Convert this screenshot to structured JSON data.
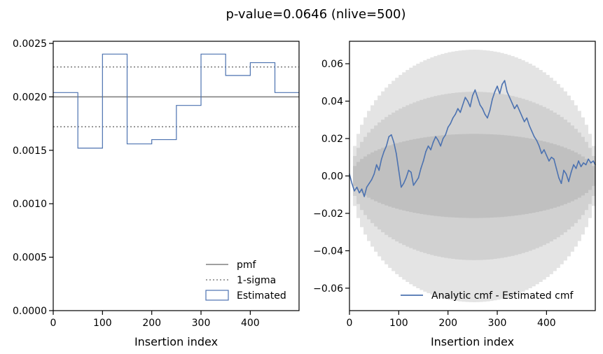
{
  "suptitle": "p-value=0.0646 (nlive=500)",
  "chart_data": [
    {
      "type": "step",
      "xlabel": "Insertion index",
      "ylabel": "",
      "xlim": [
        0,
        499
      ],
      "ylim": [
        0,
        0.00252
      ],
      "xticks": [
        0,
        100,
        200,
        300,
        400
      ],
      "xtick_labels": [
        "0",
        "100",
        "200",
        "300",
        "400"
      ],
      "yticks": [
        0,
        0.0005,
        0.001,
        0.0015,
        0.002,
        0.0025
      ],
      "ytick_labels": [
        "0.0000",
        "0.0005",
        "0.0010",
        "0.0015",
        "0.0020",
        "0.0025"
      ],
      "bin_edges": [
        0,
        50,
        100,
        150,
        200,
        250,
        300,
        350,
        400,
        450,
        499
      ],
      "values": [
        0.00204,
        0.00152,
        0.0024,
        0.00156,
        0.0016,
        0.00192,
        0.0024,
        0.0022,
        0.00232,
        0.00204
      ],
      "pmf": 0.002,
      "sigma_lines": [
        0.00172,
        0.00228
      ],
      "legend": {
        "placement": "lower-right",
        "entries": [
          "pmf",
          "1-sigma",
          "Estimated"
        ]
      },
      "colors": {
        "pmf": "#808080",
        "sigma": "#808080",
        "estimated": "#4c72b0"
      }
    },
    {
      "type": "line",
      "xlabel": "Insertion index",
      "ylabel": "",
      "xlim": [
        0,
        499
      ],
      "ylim": [
        -0.072,
        0.072
      ],
      "xticks": [
        0,
        100,
        200,
        300,
        400
      ],
      "xtick_labels": [
        "0",
        "100",
        "200",
        "300",
        "400"
      ],
      "yticks": [
        -0.06,
        -0.04,
        -0.02,
        0.0,
        0.02,
        0.04,
        0.06
      ],
      "ytick_labels": [
        "−0.06",
        "−0.04",
        "−0.02",
        "0.00",
        "0.02",
        "0.04",
        "0.06"
      ],
      "bands": [
        {
          "sigma": 3,
          "scale": 0.0675
        },
        {
          "sigma": 2,
          "scale": 0.045
        },
        {
          "sigma": 1,
          "scale": 0.0225
        }
      ],
      "series": [
        {
          "name": "Analytic cmf - Estimated cmf",
          "x": [
            0,
            5,
            10,
            15,
            20,
            25,
            30,
            35,
            40,
            45,
            50,
            55,
            60,
            65,
            70,
            75,
            80,
            85,
            90,
            95,
            100,
            105,
            110,
            115,
            120,
            125,
            130,
            135,
            140,
            145,
            150,
            155,
            160,
            165,
            170,
            175,
            180,
            185,
            190,
            195,
            200,
            205,
            210,
            215,
            220,
            225,
            230,
            235,
            240,
            245,
            250,
            255,
            260,
            265,
            270,
            275,
            280,
            285,
            290,
            295,
            300,
            305,
            310,
            315,
            320,
            325,
            330,
            335,
            340,
            345,
            350,
            355,
            360,
            365,
            370,
            375,
            380,
            385,
            390,
            395,
            400,
            405,
            410,
            415,
            420,
            425,
            430,
            435,
            440,
            445,
            450,
            455,
            460,
            465,
            470,
            475,
            480,
            485,
            490,
            495,
            499
          ],
          "y": [
            0.001,
            -0.004,
            -0.008,
            -0.006,
            -0.009,
            -0.007,
            -0.011,
            -0.006,
            -0.004,
            -0.002,
            0.001,
            0.006,
            0.003,
            0.009,
            0.013,
            0.016,
            0.021,
            0.022,
            0.018,
            0.012,
            0.003,
            -0.006,
            -0.004,
            -0.001,
            0.003,
            0.002,
            -0.005,
            -0.003,
            -0.001,
            0.004,
            0.008,
            0.013,
            0.016,
            0.014,
            0.018,
            0.021,
            0.019,
            0.016,
            0.02,
            0.022,
            0.026,
            0.028,
            0.031,
            0.033,
            0.036,
            0.034,
            0.038,
            0.042,
            0.04,
            0.037,
            0.043,
            0.046,
            0.042,
            0.038,
            0.036,
            0.033,
            0.031,
            0.035,
            0.041,
            0.045,
            0.048,
            0.044,
            0.049,
            0.051,
            0.045,
            0.042,
            0.039,
            0.036,
            0.038,
            0.035,
            0.032,
            0.029,
            0.031,
            0.027,
            0.024,
            0.021,
            0.019,
            0.016,
            0.012,
            0.014,
            0.011,
            0.008,
            0.01,
            0.009,
            0.004,
            -0.001,
            -0.004,
            0.003,
            0.001,
            -0.003,
            0.002,
            0.006,
            0.004,
            0.008,
            0.005,
            0.007,
            0.006,
            0.009,
            0.007,
            0.008,
            0.006
          ]
        }
      ],
      "legend": {
        "placement": "lower-right",
        "entries": [
          "Analytic cmf - Estimated cmf"
        ]
      },
      "colors": {
        "line": "#4c72b0",
        "band3": "#e4e4e4",
        "band2": "#d1d1d1",
        "band1": "#c0c0c0"
      }
    }
  ]
}
